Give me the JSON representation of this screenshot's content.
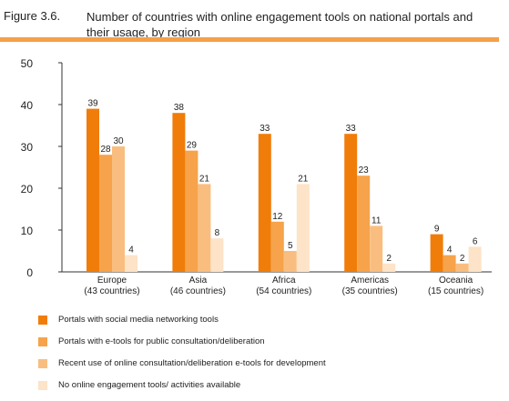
{
  "figure": {
    "number": "Figure 3.6.",
    "title": "Number of countries with online engagement tools on national portals and their usage, by region"
  },
  "colors": {
    "series": [
      "#F07D0A",
      "#F6A34B",
      "#F9BE7F",
      "#FDE3C7"
    ],
    "header_rule": "#F5A049"
  },
  "chart_data": {
    "type": "bar",
    "categories": [
      [
        "Europe",
        "(43 countries)"
      ],
      [
        "Asia",
        "(46 countries)"
      ],
      [
        "Africa",
        "(54 countries)"
      ],
      [
        "Americas",
        "(35 countries)"
      ],
      [
        "Oceania",
        "(15 countries)"
      ]
    ],
    "series": [
      {
        "name": "Portals with social media networking tools",
        "values": [
          39,
          38,
          33,
          33,
          9
        ]
      },
      {
        "name": "Portals with e-tools for public consultation/deliberation",
        "values": [
          28,
          29,
          12,
          23,
          4
        ]
      },
      {
        "name": "Recent use of online consultation/deliberation e-tools for development",
        "values": [
          30,
          21,
          5,
          11,
          2
        ]
      },
      {
        "name": "No online engagement tools/ activities available",
        "values": [
          4,
          8,
          21,
          2,
          6
        ]
      }
    ],
    "ylim": [
      0,
      50
    ],
    "yticks": [
      0,
      10,
      20,
      30,
      40,
      50
    ],
    "grid": false,
    "legend_position": "bottom"
  }
}
